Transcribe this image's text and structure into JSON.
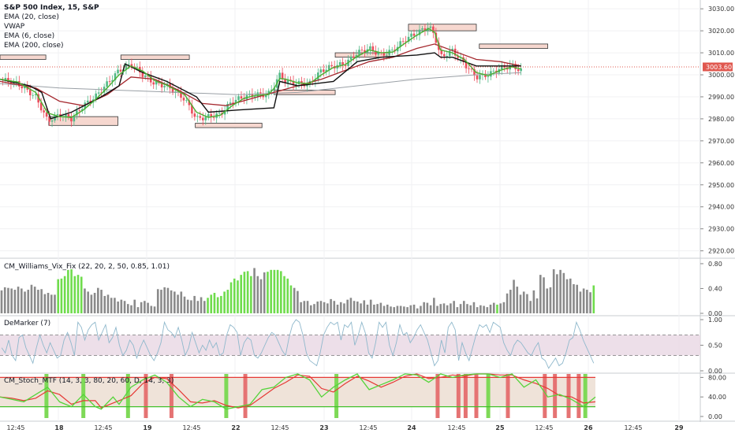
{
  "chart_data": {
    "type": "candlestick",
    "legend": {
      "title": "S&P 500 Index, 15, S&P",
      "items": [
        "EMA (20, close)",
        "VWAP",
        "EMA (6, close)",
        "EMA (200, close)"
      ]
    },
    "price_axis": {
      "ticks": [
        "3030.00",
        "3020.00",
        "3010.00",
        "3000.00",
        "2990.00",
        "2980.00",
        "2970.00",
        "2960.00",
        "2950.00",
        "2940.00",
        "2930.00",
        "2920.00"
      ],
      "tick_values": [
        3030,
        3020,
        3010,
        3000,
        2990,
        2980,
        2970,
        2960,
        2950,
        2940,
        2930,
        2920
      ],
      "range": [
        2917,
        3034
      ],
      "last_price": "3003.60",
      "last_value": 3003.6
    },
    "time_axis": {
      "labels": [
        "12:45",
        "18",
        "12:45",
        "19",
        "12:45",
        "22",
        "12:45",
        "23",
        "12:45",
        "24",
        "12:45",
        "25",
        "12:45",
        "26",
        "12:45",
        "29"
      ],
      "bold": [
        "18",
        "19",
        "22",
        "23",
        "24",
        "25",
        "26",
        "29"
      ]
    },
    "price_path": [
      [
        0,
        2998
      ],
      [
        0.03,
        2996
      ],
      [
        0.06,
        2990
      ],
      [
        0.08,
        2979
      ],
      [
        0.1,
        2982
      ],
      [
        0.12,
        2980
      ],
      [
        0.14,
        2986
      ],
      [
        0.16,
        2990
      ],
      [
        0.18,
        2996
      ],
      [
        0.2,
        3002
      ],
      [
        0.22,
        3005
      ],
      [
        0.24,
        3000
      ],
      [
        0.26,
        2996
      ],
      [
        0.28,
        2995
      ],
      [
        0.31,
        2989
      ],
      [
        0.33,
        2980
      ],
      [
        0.35,
        2981
      ],
      [
        0.37,
        2982
      ],
      [
        0.39,
        2988
      ],
      [
        0.41,
        2990
      ],
      [
        0.43,
        2991
      ],
      [
        0.45,
        2991
      ],
      [
        0.46,
        2995
      ],
      [
        0.47,
        3000
      ],
      [
        0.48,
        2997
      ],
      [
        0.5,
        2996
      ],
      [
        0.52,
        2996
      ],
      [
        0.54,
        3002
      ],
      [
        0.56,
        3004
      ],
      [
        0.58,
        3005
      ],
      [
        0.6,
        3010
      ],
      [
        0.62,
        3012
      ],
      [
        0.64,
        3009
      ],
      [
        0.66,
        3011
      ],
      [
        0.68,
        3016
      ],
      [
        0.7,
        3019
      ],
      [
        0.72,
        3022
      ],
      [
        0.73,
        3018
      ],
      [
        0.74,
        3008
      ],
      [
        0.76,
        3011
      ],
      [
        0.78,
        3005
      ],
      [
        0.8,
        2999
      ],
      [
        0.82,
        3000
      ],
      [
        0.84,
        3003
      ],
      [
        0.86,
        3004
      ],
      [
        0.875,
        3002
      ]
    ],
    "ema20_path": [
      [
        0,
        2997
      ],
      [
        0.06,
        2994
      ],
      [
        0.1,
        2988
      ],
      [
        0.14,
        2986
      ],
      [
        0.18,
        2991
      ],
      [
        0.22,
        2999
      ],
      [
        0.26,
        2998
      ],
      [
        0.3,
        2993
      ],
      [
        0.34,
        2987
      ],
      [
        0.38,
        2986
      ],
      [
        0.42,
        2989
      ],
      [
        0.46,
        2992
      ],
      [
        0.5,
        2995
      ],
      [
        0.54,
        2998
      ],
      [
        0.58,
        3002
      ],
      [
        0.62,
        3006
      ],
      [
        0.66,
        3008
      ],
      [
        0.7,
        3012
      ],
      [
        0.73,
        3014
      ],
      [
        0.76,
        3011
      ],
      [
        0.8,
        3007
      ],
      [
        0.84,
        3006
      ],
      [
        0.875,
        3004
      ]
    ],
    "ema200_path": [
      [
        0,
        2996
      ],
      [
        0.1,
        2994
      ],
      [
        0.2,
        2993
      ],
      [
        0.3,
        2992
      ],
      [
        0.4,
        2991
      ],
      [
        0.5,
        2992
      ],
      [
        0.6,
        2995
      ],
      [
        0.7,
        2998
      ],
      [
        0.8,
        3000
      ],
      [
        0.875,
        3001
      ]
    ],
    "vwap_path": [
      [
        0,
        2998
      ],
      [
        0.05,
        2995
      ],
      [
        0.07,
        2992
      ],
      [
        0.085,
        2980
      ],
      [
        0.12,
        2983
      ],
      [
        0.17,
        2990
      ],
      [
        0.2,
        2995
      ],
      [
        0.21,
        3005
      ],
      [
        0.24,
        3001
      ],
      [
        0.28,
        2997
      ],
      [
        0.33,
        2990
      ],
      [
        0.35,
        2983
      ],
      [
        0.4,
        2984
      ],
      [
        0.46,
        2985
      ],
      [
        0.47,
        2997
      ],
      [
        0.5,
        2995
      ],
      [
        0.56,
        2997
      ],
      [
        0.6,
        3006
      ],
      [
        0.64,
        3008
      ],
      [
        0.7,
        3009
      ],
      [
        0.73,
        3010
      ],
      [
        0.74,
        3008
      ],
      [
        0.76,
        3008
      ],
      [
        0.8,
        3004
      ],
      [
        0.875,
        3004
      ]
    ],
    "zones": [
      {
        "x0": 0.0,
        "x1": 0.077,
        "y0": 3009,
        "y1": 3007
      },
      {
        "x0": 0.082,
        "x1": 0.198,
        "y0": 2981,
        "y1": 2977
      },
      {
        "x0": 0.203,
        "x1": 0.318,
        "y0": 3009,
        "y1": 3007
      },
      {
        "x0": 0.328,
        "x1": 0.44,
        "y0": 2978,
        "y1": 2976
      },
      {
        "x0": 0.46,
        "x1": 0.563,
        "y0": 2993,
        "y1": 2991
      },
      {
        "x0": 0.563,
        "x1": 0.654,
        "y0": 3010,
        "y1": 3008
      },
      {
        "x0": 0.686,
        "x1": 0.8,
        "y0": 3023,
        "y1": 3020
      },
      {
        "x0": 0.805,
        "x1": 0.92,
        "y0": 3014,
        "y1": 3012
      }
    ],
    "vix": {
      "label": "CM_Williams_Vix_Fix (22, 20, 2, 50, 0.85, 1.01)",
      "ticks": [
        "0.80",
        "0.40",
        "0.00"
      ],
      "tick_values": [
        0.8,
        0.4,
        0.0
      ],
      "values": [
        0.37,
        0.42,
        0.41,
        0.4,
        0.38,
        0.43,
        0.4,
        0.35,
        0.38,
        0.46,
        0.43,
        0.38,
        0.39,
        0.31,
        0.33,
        0.3,
        0.3,
        0.55,
        0.56,
        0.6,
        0.7,
        0.71,
        0.6,
        0.62,
        0.59,
        0.4,
        0.35,
        0.3,
        0.33,
        0.41,
        0.38,
        0.28,
        0.3,
        0.25,
        0.25,
        0.19,
        0.22,
        0.2,
        0.15,
        0.13,
        0.22,
        0.1,
        0.18,
        0.2,
        0.17,
        0.12,
        0.11,
        0.39,
        0.38,
        0.42,
        0.41,
        0.37,
        0.35,
        0.3,
        0.35,
        0.27,
        0.22,
        0.21,
        0.28,
        0.2,
        0.26,
        0.2,
        0.25,
        0.3,
        0.33,
        0.26,
        0.28,
        0.35,
        0.38,
        0.5,
        0.56,
        0.53,
        0.62,
        0.67,
        0.68,
        0.6,
        0.73,
        0.6,
        0.55,
        0.66,
        0.67,
        0.7,
        0.7,
        0.7,
        0.68,
        0.6,
        0.56,
        0.45,
        0.41,
        0.36,
        0.18,
        0.2,
        0.2,
        0.13,
        0.15,
        0.19,
        0.2,
        0.18,
        0.16,
        0.23,
        0.2,
        0.14,
        0.18,
        0.16,
        0.22,
        0.25,
        0.2,
        0.19,
        0.16,
        0.21,
        0.14,
        0.22,
        0.14,
        0.15,
        0.17,
        0.12,
        0.14,
        0.11,
        0.1,
        0.12,
        0.12,
        0.11,
        0.1,
        0.13,
        0.14,
        0.08,
        0.12,
        0.18,
        0.17,
        0.13,
        0.25,
        0.12,
        0.15,
        0.16,
        0.13,
        0.16,
        0.2,
        0.1,
        0.15,
        0.2,
        0.15,
        0.13,
        0.18,
        0.1,
        0.13,
        0.12,
        0.1,
        0.14,
        0.17,
        0.14,
        0.16,
        0.18,
        0.32,
        0.38,
        0.54,
        0.43,
        0.3,
        0.35,
        0.31,
        0.2,
        0.37,
        0.24,
        0.62,
        0.58,
        0.4,
        0.42,
        0.71,
        0.63,
        0.7,
        0.65,
        0.55,
        0.56,
        0.47,
        0.46,
        0.35,
        0.4,
        0.38,
        0.34,
        0.45
      ],
      "green_ranges": [
        [
          17,
          24
        ],
        [
          62,
          75
        ],
        [
          80,
          87
        ],
        [
          149,
          149
        ],
        [
          178,
          186
        ],
        [
          188,
          197
        ]
      ]
    },
    "demarker": {
      "label": "DeMarker (7)",
      "ticks": [
        "1.00",
        "0.50",
        "0.00"
      ],
      "tick_values": [
        1.0,
        0.5,
        0.0
      ],
      "upper": 0.7,
      "lower": 0.3,
      "values": [
        0.45,
        0.35,
        0.6,
        0.3,
        0.2,
        0.65,
        0.7,
        0.45,
        0.3,
        0.15,
        0.45,
        0.7,
        0.5,
        0.35,
        0.55,
        0.4,
        0.25,
        0.3,
        0.6,
        0.75,
        0.55,
        0.3,
        0.95,
        0.85,
        0.6,
        0.8,
        0.9,
        0.95,
        0.6,
        0.75,
        0.9,
        0.55,
        0.65,
        0.85,
        0.5,
        0.3,
        0.4,
        0.6,
        0.5,
        0.25,
        0.45,
        0.6,
        0.45,
        0.3,
        0.2,
        0.35,
        0.55,
        0.95,
        0.8,
        0.75,
        0.65,
        0.85,
        0.6,
        0.3,
        0.45,
        0.75,
        0.55,
        0.35,
        0.5,
        0.4,
        0.6,
        0.45,
        0.55,
        0.3,
        0.35,
        0.7,
        0.9,
        0.85,
        0.75,
        0.3,
        0.55,
        0.65,
        0.6,
        0.3,
        0.25,
        0.35,
        0.5,
        0.65,
        0.75,
        0.7,
        0.55,
        0.4,
        0.3,
        0.65,
        0.9,
        1.0,
        0.95,
        0.7,
        0.35,
        0.2,
        0.15,
        0.1,
        0.35,
        0.7,
        0.85,
        0.95,
        0.9,
        0.95,
        0.6,
        0.9,
        0.85,
        0.95,
        0.5,
        0.7,
        0.95,
        0.75,
        0.35,
        0.25,
        0.55,
        0.95,
        0.85,
        0.95,
        0.5,
        0.3,
        0.55,
        0.9,
        0.7,
        0.75,
        0.55,
        0.65,
        0.8,
        0.9,
        0.75,
        0.6,
        0.35,
        0.1,
        0.2,
        0.6,
        0.35,
        0.85,
        0.95,
        0.8,
        0.2,
        0.55,
        0.35,
        0.2,
        0.45,
        0.7,
        0.9,
        0.85,
        0.9,
        0.75,
        0.95,
        0.9,
        0.85,
        0.55,
        0.4,
        0.3,
        0.5,
        0.6,
        0.55,
        0.45,
        0.35,
        0.3,
        0.45,
        0.55,
        0.25,
        0.2,
        0.05,
        0.15,
        0.25,
        0.1,
        0.15,
        0.35,
        0.6,
        0.65,
        0.95,
        0.8,
        0.6,
        0.45,
        0.3,
        0.15
      ],
      "band_color": "#e8d7e3"
    },
    "stoch": {
      "label": "CM_Stoch_MTF (14, 3, 3, 80, 20, 60, D, 14, 3, 3)",
      "ticks": [
        "80.00",
        "40.00",
        "0.00"
      ],
      "tick_values": [
        80,
        40,
        0
      ],
      "upper": 80,
      "lower": 20,
      "k": [
        [
          0,
          40
        ],
        [
          0.02,
          35
        ],
        [
          0.04,
          30
        ],
        [
          0.06,
          45
        ],
        [
          0.08,
          60
        ],
        [
          0.1,
          30
        ],
        [
          0.12,
          20
        ],
        [
          0.14,
          45
        ],
        [
          0.16,
          20
        ],
        [
          0.17,
          15
        ],
        [
          0.19,
          40
        ],
        [
          0.2,
          25
        ],
        [
          0.22,
          60
        ],
        [
          0.24,
          75
        ],
        [
          0.26,
          85
        ],
        [
          0.28,
          70
        ],
        [
          0.3,
          40
        ],
        [
          0.32,
          20
        ],
        [
          0.34,
          35
        ],
        [
          0.36,
          30
        ],
        [
          0.38,
          15
        ],
        [
          0.4,
          20
        ],
        [
          0.42,
          25
        ],
        [
          0.44,
          55
        ],
        [
          0.46,
          60
        ],
        [
          0.48,
          80
        ],
        [
          0.5,
          90
        ],
        [
          0.52,
          75
        ],
        [
          0.54,
          40
        ],
        [
          0.56,
          60
        ],
        [
          0.58,
          75
        ],
        [
          0.6,
          90
        ],
        [
          0.62,
          55
        ],
        [
          0.64,
          65
        ],
        [
          0.66,
          75
        ],
        [
          0.68,
          90
        ],
        [
          0.7,
          85
        ],
        [
          0.72,
          70
        ],
        [
          0.74,
          90
        ],
        [
          0.76,
          80
        ],
        [
          0.78,
          85
        ],
        [
          0.8,
          95
        ],
        [
          0.82,
          90
        ],
        [
          0.84,
          80
        ],
        [
          0.86,
          90
        ],
        [
          0.88,
          60
        ],
        [
          0.9,
          75
        ],
        [
          0.92,
          40
        ],
        [
          0.94,
          45
        ],
        [
          0.96,
          35
        ],
        [
          0.98,
          20
        ],
        [
          1.0,
          40
        ]
      ],
      "green_bars": [
        0.078,
        0.14,
        0.215,
        0.38,
        0.565,
        0.82,
        0.983
      ],
      "red_bars": [
        0.245,
        0.288,
        0.412,
        0.735,
        0.77,
        0.782,
        0.8,
        0.853,
        0.915,
        0.932,
        0.955,
        0.972
      ]
    }
  }
}
